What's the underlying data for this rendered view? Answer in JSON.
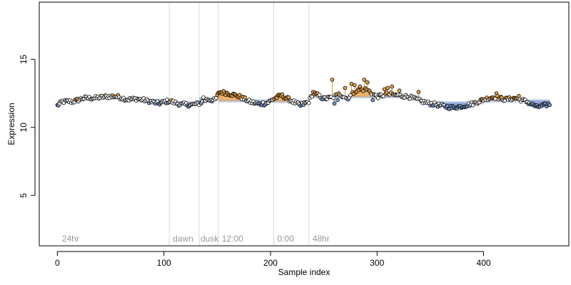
{
  "chart_data": {
    "type": "scatter",
    "title": "",
    "xlabel": "Sample index",
    "ylabel": "Expression",
    "xlim": [
      -17,
      480
    ],
    "ylim": [
      1.3,
      19.2
    ],
    "xticks": [
      0,
      100,
      200,
      300,
      400
    ],
    "yticks": [
      5,
      10,
      15
    ],
    "grid": false,
    "legend": "none",
    "vlines": [
      105,
      133,
      151,
      203,
      236
    ],
    "annotations": [
      {
        "x": 3,
        "text": "24hr"
      },
      {
        "x": 107,
        "text": "dawn"
      },
      {
        "x": 133,
        "text": "dusk"
      },
      {
        "x": 153,
        "text": "12:00"
      },
      {
        "x": 205,
        "text": "0:00"
      },
      {
        "x": 238,
        "text": "48hr"
      }
    ],
    "colors": {
      "up": "#e8a24a",
      "down": "#7f9fd4",
      "baseline": "#a4b8dd",
      "point_edge": "#000000",
      "vline": "#d9d9d9",
      "annotation": "#9a9a9a"
    },
    "baseline_segments": [
      {
        "x0": 0,
        "x1": 20,
        "y": 11.85
      },
      {
        "x0": 20,
        "x1": 60,
        "y": 12.15
      },
      {
        "x0": 60,
        "x1": 105,
        "y": 12.0
      },
      {
        "x0": 105,
        "x1": 133,
        "y": 11.8
      },
      {
        "x0": 133,
        "x1": 151,
        "y": 12.1
      },
      {
        "x0": 151,
        "x1": 203,
        "y": 11.95
      },
      {
        "x0": 203,
        "x1": 236,
        "y": 11.9
      },
      {
        "x0": 236,
        "x1": 300,
        "y": 12.25
      },
      {
        "x0": 300,
        "x1": 340,
        "y": 12.25
      },
      {
        "x0": 340,
        "x1": 400,
        "y": 11.8
      },
      {
        "x0": 400,
        "x1": 462,
        "y": 11.95
      }
    ],
    "anchors": [
      [
        0,
        11.6
      ],
      [
        5,
        11.9
      ],
      [
        15,
        11.9
      ],
      [
        25,
        12.15
      ],
      [
        35,
        12.15
      ],
      [
        45,
        12.25
      ],
      [
        55,
        12.3
      ],
      [
        65,
        12.05
      ],
      [
        75,
        12.1
      ],
      [
        85,
        11.95
      ],
      [
        95,
        11.75
      ],
      [
        105,
        11.95
      ],
      [
        115,
        11.7
      ],
      [
        125,
        11.65
      ],
      [
        133,
        11.75
      ],
      [
        140,
        12.05
      ],
      [
        148,
        12.0
      ],
      [
        152,
        12.6
      ],
      [
        160,
        12.5
      ],
      [
        170,
        12.3
      ],
      [
        180,
        11.9
      ],
      [
        190,
        11.7
      ],
      [
        197,
        11.8
      ],
      [
        203,
        12.1
      ],
      [
        210,
        12.35
      ],
      [
        220,
        11.95
      ],
      [
        228,
        11.6
      ],
      [
        236,
        11.9
      ],
      [
        240,
        12.55
      ],
      [
        250,
        12.1
      ],
      [
        258,
        12.2
      ],
      [
        265,
        12.45
      ],
      [
        272,
        12.1
      ],
      [
        280,
        12.7
      ],
      [
        290,
        12.8
      ],
      [
        300,
        12.25
      ],
      [
        310,
        12.45
      ],
      [
        320,
        12.35
      ],
      [
        330,
        12.25
      ],
      [
        340,
        11.95
      ],
      [
        350,
        11.75
      ],
      [
        360,
        11.6
      ],
      [
        370,
        11.45
      ],
      [
        380,
        11.55
      ],
      [
        390,
        11.75
      ],
      [
        400,
        12.05
      ],
      [
        410,
        12.25
      ],
      [
        420,
        12.05
      ],
      [
        430,
        12.15
      ],
      [
        440,
        11.9
      ],
      [
        450,
        11.5
      ],
      [
        462,
        11.7
      ]
    ],
    "spikes": [
      [
        258,
        13.5
      ],
      [
        270,
        12.9
      ],
      [
        276,
        13.2
      ],
      [
        279,
        13.1
      ],
      [
        284,
        13.0
      ],
      [
        288,
        13.5
      ],
      [
        291,
        13.3
      ],
      [
        307,
        12.8
      ],
      [
        310,
        12.9
      ],
      [
        314,
        13.0
      ],
      [
        321,
        12.7
      ],
      [
        339,
        12.6
      ],
      [
        412,
        12.5
      ],
      [
        433,
        12.3
      ],
      [
        137,
        12.2
      ],
      [
        260,
        11.75
      ],
      [
        263,
        12.0
      ],
      [
        296,
        12.0
      ]
    ]
  }
}
